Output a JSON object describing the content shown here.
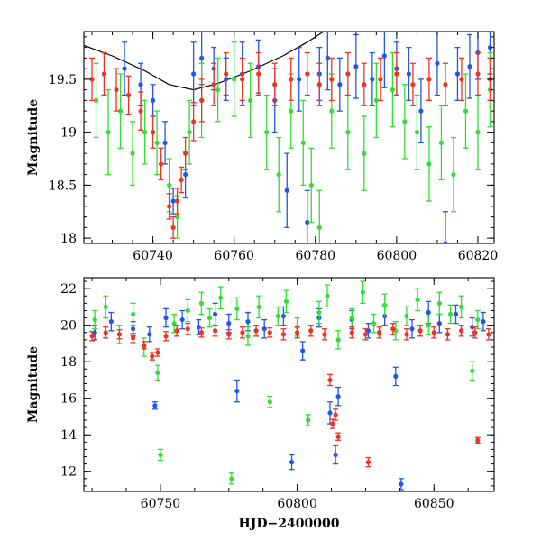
{
  "chart_data": [
    {
      "type": "scatter",
      "title": "",
      "xlabel": "",
      "ylabel": "Magnitude",
      "xlim": [
        60723,
        60824
      ],
      "ylim": [
        19.95,
        17.95
      ],
      "y_inverted": true,
      "xticks": [
        60740,
        60760,
        60780,
        60800,
        60820
      ],
      "yticks": [
        18,
        18.5,
        19,
        19.5
      ],
      "xticklabels": [
        "60740",
        "60760",
        "60780",
        "60800",
        "60820"
      ],
      "yticklabels": [
        "18",
        "18.5",
        "19",
        "19.5"
      ],
      "grid": false,
      "error_bars": true,
      "model_curve": {
        "color": "#000000",
        "x": [
          60723,
          60730,
          60738,
          60744,
          60750,
          60756,
          60764,
          60772,
          60778,
          60782
        ],
        "y": [
          19.82,
          19.72,
          19.58,
          19.45,
          19.4,
          19.46,
          19.58,
          19.72,
          19.85,
          19.95
        ]
      },
      "series": [
        {
          "color": "#2255ee",
          "x": [
            60728,
            60733,
            60737,
            60740,
            60743,
            60745,
            60748,
            60750,
            60752,
            60755,
            60758,
            60762,
            60766,
            60770,
            60773,
            60776,
            60778,
            60781,
            60783,
            60786,
            60790,
            60794,
            60797,
            60800,
            60803,
            60806,
            60810,
            60812,
            60815,
            60818,
            60820,
            60823
          ],
          "y": [
            19.55,
            19.6,
            19.45,
            19.3,
            18.9,
            18.35,
            18.6,
            19.55,
            19.7,
            19.6,
            19.5,
            19.55,
            19.62,
            19.3,
            18.45,
            19.5,
            18.15,
            19.55,
            19.7,
            19.45,
            19.62,
            19.5,
            19.72,
            19.6,
            19.55,
            19.2,
            19.65,
            17.95,
            19.55,
            19.62,
            19.75,
            19.8
          ],
          "err": [
            0.2,
            0.25,
            0.2,
            0.15,
            0.2,
            0.12,
            0.22,
            0.3,
            0.25,
            0.2,
            0.2,
            0.3,
            0.25,
            0.3,
            0.35,
            0.3,
            0.3,
            0.25,
            0.3,
            0.25,
            0.3,
            0.25,
            0.3,
            0.25,
            0.25,
            0.3,
            0.3,
            0.3,
            0.25,
            0.3,
            0.25,
            0.25
          ]
        },
        {
          "color": "#33dd33",
          "x": [
            60726,
            60729,
            60732,
            60735,
            60738,
            60741,
            60744,
            60746,
            60749,
            60752,
            60756,
            60760,
            60764,
            60768,
            60771,
            60774,
            60777,
            60779,
            60781,
            60784,
            60788,
            60792,
            60795,
            60799,
            60802,
            60805,
            60808,
            60811,
            60814,
            60817,
            60820,
            60823
          ],
          "y": [
            19.3,
            19.0,
            19.2,
            18.8,
            19.0,
            18.9,
            18.5,
            18.2,
            19.0,
            19.3,
            19.4,
            19.5,
            19.3,
            19.0,
            18.6,
            19.2,
            18.9,
            18.5,
            18.1,
            19.2,
            19.0,
            18.8,
            19.3,
            19.4,
            19.1,
            19.0,
            18.7,
            18.9,
            18.6,
            19.2,
            19.0,
            19.4
          ],
          "err": [
            0.35,
            0.4,
            0.35,
            0.3,
            0.3,
            0.3,
            0.25,
            0.2,
            0.3,
            0.35,
            0.3,
            0.35,
            0.35,
            0.35,
            0.35,
            0.35,
            0.4,
            0.35,
            0.35,
            0.35,
            0.35,
            0.35,
            0.35,
            0.35,
            0.35,
            0.35,
            0.35,
            0.35,
            0.35,
            0.35,
            0.35,
            0.35
          ]
        },
        {
          "color": "#ee3322",
          "x": [
            60725,
            60728,
            60731,
            60734,
            60737,
            60740,
            60742,
            60744,
            60745,
            60746,
            60747,
            60748,
            60750,
            60752,
            60755,
            60758,
            60762,
            60766,
            60770,
            60774,
            60778,
            60781,
            60784,
            60788,
            60792,
            60796,
            60800,
            60804,
            60808,
            60812,
            60816,
            60820,
            60823
          ],
          "y": [
            19.5,
            19.55,
            19.4,
            19.35,
            19.2,
            19.0,
            18.7,
            18.3,
            18.1,
            18.35,
            18.55,
            18.8,
            19.1,
            19.3,
            19.45,
            19.55,
            19.5,
            19.55,
            19.45,
            19.5,
            19.55,
            19.45,
            19.5,
            19.55,
            19.45,
            19.5,
            19.55,
            19.45,
            19.5,
            19.45,
            19.5,
            19.55,
            19.5
          ],
          "err": [
            0.2,
            0.2,
            0.2,
            0.18,
            0.18,
            0.15,
            0.15,
            0.12,
            0.1,
            0.12,
            0.12,
            0.15,
            0.18,
            0.2,
            0.2,
            0.2,
            0.2,
            0.2,
            0.2,
            0.2,
            0.2,
            0.2,
            0.2,
            0.2,
            0.2,
            0.2,
            0.2,
            0.2,
            0.2,
            0.2,
            0.2,
            0.2,
            0.2
          ]
        }
      ]
    },
    {
      "type": "scatter",
      "title": "",
      "xlabel": "HJD−2400000",
      "ylabel": "Magnitude",
      "xlim": [
        60722,
        60872
      ],
      "ylim": [
        22.6,
        10.9
      ],
      "y_inverted": true,
      "xticks": [
        60750,
        60800,
        60850
      ],
      "yticks": [
        12,
        14,
        16,
        18,
        20,
        22
      ],
      "xticklabels": [
        "60750",
        "60800",
        "60850"
      ],
      "yticklabels": [
        "12",
        "14",
        "16",
        "18",
        "20",
        "22"
      ],
      "grid": false,
      "error_bars": true,
      "series": [
        {
          "color": "#2255ee",
          "x": [
            60726,
            60732,
            60740,
            60746,
            60748,
            60752,
            60758,
            60764,
            60770,
            60775,
            60778,
            60782,
            60788,
            60795,
            60798,
            60802,
            60808,
            60812,
            60814,
            60815,
            60820,
            60826,
            60832,
            60836,
            60838,
            60842,
            60848,
            60852,
            60858,
            60864,
            60868
          ],
          "y": [
            19.6,
            20.2,
            19.8,
            19.5,
            15.6,
            20.4,
            20.3,
            19.9,
            20.6,
            20.1,
            16.4,
            20.2,
            19.8,
            20.5,
            12.5,
            18.6,
            20.4,
            15.2,
            12.9,
            16.1,
            20.3,
            19.7,
            20.5,
            17.2,
            11.3,
            19.8,
            20.7,
            20.1,
            20.6,
            19.9,
            20.2
          ],
          "err": [
            0.4,
            0.5,
            0.4,
            0.4,
            0.2,
            0.5,
            0.5,
            0.4,
            0.6,
            0.5,
            0.6,
            0.5,
            0.5,
            0.5,
            0.4,
            0.5,
            0.5,
            0.6,
            0.5,
            0.5,
            0.5,
            0.4,
            0.5,
            0.5,
            0.3,
            0.5,
            0.6,
            0.5,
            0.5,
            0.5,
            0.5
          ]
        },
        {
          "color": "#33dd33",
          "x": [
            60726,
            60730,
            60735,
            60740,
            60744,
            60749,
            60750,
            60755,
            60760,
            60765,
            60768,
            60772,
            60776,
            60778,
            60782,
            60786,
            60790,
            60793,
            60796,
            60800,
            60804,
            60808,
            60811,
            60815,
            60820,
            60824,
            60828,
            60832,
            60836,
            60840,
            60844,
            60848,
            60852,
            60856,
            60860,
            60864,
            60866
          ],
          "y": [
            20.3,
            21.0,
            19.5,
            20.6,
            18.8,
            17.4,
            12.9,
            20.1,
            20.8,
            21.2,
            20.4,
            21.5,
            11.6,
            20.9,
            19.4,
            21.0,
            15.8,
            20.5,
            21.3,
            19.9,
            14.8,
            20.7,
            21.6,
            19.2,
            20.4,
            21.8,
            20.1,
            21.1,
            19.7,
            20.5,
            21.4,
            20.0,
            21.2,
            20.6,
            21.0,
            17.5,
            20.3
          ],
          "err": [
            0.5,
            0.6,
            0.5,
            0.6,
            0.5,
            0.4,
            0.3,
            0.5,
            0.6,
            0.6,
            0.5,
            0.6,
            0.3,
            0.6,
            0.5,
            0.6,
            0.3,
            0.5,
            0.6,
            0.5,
            0.3,
            0.6,
            0.6,
            0.5,
            0.5,
            0.6,
            0.5,
            0.6,
            0.5,
            0.5,
            0.6,
            0.5,
            0.6,
            0.5,
            0.6,
            0.5,
            0.5
          ]
        },
        {
          "color": "#ee3322",
          "x": [
            60725,
            60730,
            60735,
            60740,
            60744,
            60747,
            60749,
            60752,
            60756,
            60760,
            60765,
            60770,
            60775,
            60780,
            60785,
            60790,
            60795,
            60800,
            60805,
            60810,
            60812,
            60813,
            60814,
            60815,
            60820,
            60825,
            60826,
            60830,
            60835,
            60840,
            60845,
            60850,
            60855,
            60860,
            60865,
            60866,
            60870
          ],
          "y": [
            19.4,
            19.6,
            19.5,
            19.3,
            18.9,
            18.3,
            18.5,
            19.4,
            19.7,
            19.8,
            19.6,
            19.7,
            19.5,
            19.6,
            19.7,
            19.6,
            19.5,
            19.6,
            19.7,
            19.5,
            17.0,
            14.6,
            15.1,
            13.9,
            19.6,
            19.5,
            12.5,
            19.6,
            19.8,
            19.5,
            19.7,
            19.6,
            19.5,
            19.7,
            19.6,
            13.7,
            19.5
          ],
          "err": [
            0.25,
            0.3,
            0.25,
            0.25,
            0.2,
            0.2,
            0.2,
            0.25,
            0.3,
            0.3,
            0.25,
            0.3,
            0.25,
            0.3,
            0.3,
            0.25,
            0.3,
            0.3,
            0.3,
            0.3,
            0.3,
            0.25,
            0.3,
            0.2,
            0.3,
            0.3,
            0.25,
            0.3,
            0.3,
            0.3,
            0.3,
            0.3,
            0.3,
            0.3,
            0.3,
            0.15,
            0.3
          ]
        }
      ]
    }
  ]
}
